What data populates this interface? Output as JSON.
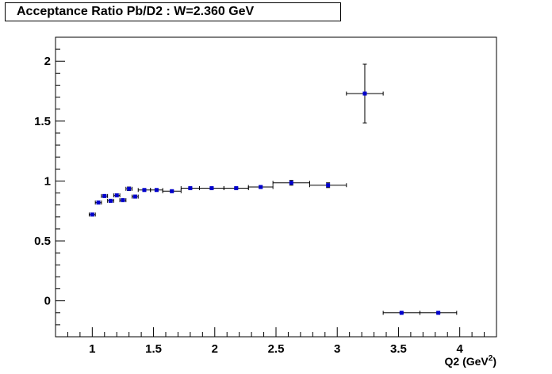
{
  "chart_data": {
    "type": "scatter",
    "title": "Acceptance Ratio Pb/D2 : W=2.360 GeV",
    "xlabel": "Q2 (GeV",
    "xlabel_sup": "2",
    "xlabel_end": ")",
    "ylabel": "",
    "xlim": [
      0.7,
      4.3
    ],
    "ylim": [
      -0.3,
      2.2
    ],
    "xticks": [
      {
        "v": 1,
        "label": "1"
      },
      {
        "v": 1.5,
        "label": "1.5"
      },
      {
        "v": 2,
        "label": "2"
      },
      {
        "v": 2.5,
        "label": "2.5"
      },
      {
        "v": 3,
        "label": "3"
      },
      {
        "v": 3.5,
        "label": "3.5"
      },
      {
        "v": 4,
        "label": "4"
      }
    ],
    "yticks": [
      {
        "v": 0,
        "label": "0"
      },
      {
        "v": 0.5,
        "label": "0.5"
      },
      {
        "v": 1,
        "label": "1"
      },
      {
        "v": 1.5,
        "label": "1.5"
      },
      {
        "v": 2,
        "label": "2"
      }
    ],
    "marker_color": "#0000cc",
    "errorbar_color": "#000000",
    "points": [
      {
        "x": 1.0,
        "y": 0.72,
        "xerr": 0.025,
        "yerr": 0.012
      },
      {
        "x": 1.05,
        "y": 0.82,
        "xerr": 0.025,
        "yerr": 0.012
      },
      {
        "x": 1.1,
        "y": 0.875,
        "xerr": 0.025,
        "yerr": 0.012
      },
      {
        "x": 1.15,
        "y": 0.835,
        "xerr": 0.025,
        "yerr": 0.012
      },
      {
        "x": 1.2,
        "y": 0.88,
        "xerr": 0.025,
        "yerr": 0.012
      },
      {
        "x": 1.25,
        "y": 0.84,
        "xerr": 0.025,
        "yerr": 0.012
      },
      {
        "x": 1.3,
        "y": 0.935,
        "xerr": 0.025,
        "yerr": 0.015
      },
      {
        "x": 1.35,
        "y": 0.87,
        "xerr": 0.025,
        "yerr": 0.012
      },
      {
        "x": 1.425,
        "y": 0.925,
        "xerr": 0.05,
        "yerr": 0.008
      },
      {
        "x": 1.525,
        "y": 0.925,
        "xerr": 0.05,
        "yerr": 0.008
      },
      {
        "x": 1.65,
        "y": 0.915,
        "xerr": 0.075,
        "yerr": 0.008
      },
      {
        "x": 1.8,
        "y": 0.94,
        "xerr": 0.075,
        "yerr": 0.008
      },
      {
        "x": 1.975,
        "y": 0.94,
        "xerr": 0.1,
        "yerr": 0.008
      },
      {
        "x": 2.175,
        "y": 0.94,
        "xerr": 0.1,
        "yerr": 0.008
      },
      {
        "x": 2.375,
        "y": 0.95,
        "xerr": 0.1,
        "yerr": 0.01
      },
      {
        "x": 2.625,
        "y": 0.985,
        "xerr": 0.15,
        "yerr": 0.02
      },
      {
        "x": 2.925,
        "y": 0.965,
        "xerr": 0.15,
        "yerr": 0.02
      },
      {
        "x": 3.225,
        "y": 1.73,
        "xerr": 0.15,
        "yerr": 0.245
      },
      {
        "x": 3.525,
        "y": -0.1,
        "xerr": 0.15,
        "yerr": 0.005
      },
      {
        "x": 3.825,
        "y": -0.1,
        "xerr": 0.15,
        "yerr": 0.005
      }
    ]
  }
}
